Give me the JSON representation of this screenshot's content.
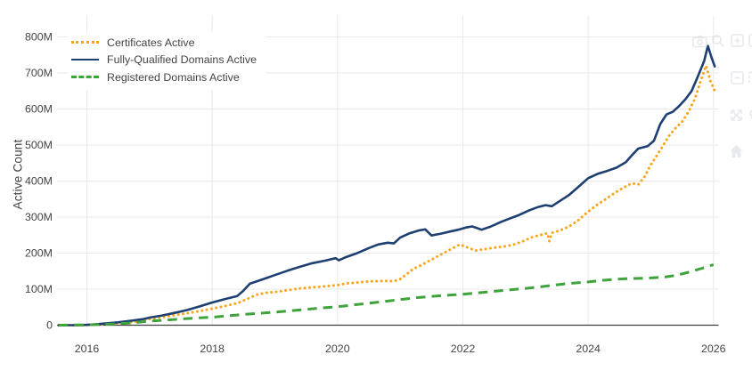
{
  "chart_data": {
    "type": "line",
    "title": "",
    "xlabel": "",
    "ylabel": "Active Count",
    "grid": true,
    "legend_position": "top-left-inside",
    "xlim": [
      2015.52,
      2026.1
    ],
    "ylim": [
      0,
      860
    ],
    "y_unit": "count (M = millions)",
    "x_ticks": [
      {
        "v": 2016,
        "label": "2016"
      },
      {
        "v": 2018,
        "label": "2018"
      },
      {
        "v": 2020,
        "label": "2020"
      },
      {
        "v": 2022,
        "label": "2022"
      },
      {
        "v": 2024,
        "label": "2024"
      },
      {
        "v": 2026,
        "label": "2026"
      }
    ],
    "y_ticks": [
      {
        "v": 0,
        "label": "0"
      },
      {
        "v": 100,
        "label": "100M"
      },
      {
        "v": 200,
        "label": "200M"
      },
      {
        "v": 300,
        "label": "300M"
      },
      {
        "v": 400,
        "label": "400M"
      },
      {
        "v": 500,
        "label": "500M"
      },
      {
        "v": 600,
        "label": "600M"
      },
      {
        "v": 700,
        "label": "700M"
      },
      {
        "v": 800,
        "label": "800M"
      }
    ],
    "colors": {
      "grid": "#e9e9e9",
      "zeroline": "#3d3d3d",
      "tick_text": "#444444",
      "modebar_icon": "#d3d8e0"
    },
    "series": [
      {
        "name": "Certificates Active",
        "color": "#f9a51b",
        "dash": "dot",
        "points_unit_millions": true,
        "points": [
          [
            2015.55,
            0
          ],
          [
            2015.9,
            0
          ],
          [
            2016.1,
            1
          ],
          [
            2016.3,
            3
          ],
          [
            2016.5,
            5
          ],
          [
            2016.7,
            8
          ],
          [
            2016.9,
            13
          ],
          [
            2017.0,
            17
          ],
          [
            2017.2,
            22
          ],
          [
            2017.4,
            28
          ],
          [
            2017.6,
            33
          ],
          [
            2017.8,
            39
          ],
          [
            2018.0,
            46
          ],
          [
            2018.2,
            53
          ],
          [
            2018.4,
            61
          ],
          [
            2018.55,
            72
          ],
          [
            2018.7,
            84
          ],
          [
            2018.85,
            90
          ],
          [
            2019.0,
            92
          ],
          [
            2019.2,
            97
          ],
          [
            2019.4,
            102
          ],
          [
            2019.6,
            105
          ],
          [
            2019.8,
            108
          ],
          [
            2020.0,
            111
          ],
          [
            2020.15,
            116
          ],
          [
            2020.3,
            118
          ],
          [
            2020.45,
            121
          ],
          [
            2020.6,
            122
          ],
          [
            2020.75,
            123
          ],
          [
            2020.9,
            122
          ],
          [
            2021.0,
            128
          ],
          [
            2021.1,
            141
          ],
          [
            2021.2,
            155
          ],
          [
            2021.35,
            168
          ],
          [
            2021.5,
            182
          ],
          [
            2021.65,
            196
          ],
          [
            2021.8,
            210
          ],
          [
            2021.95,
            224
          ],
          [
            2022.1,
            214
          ],
          [
            2022.2,
            207
          ],
          [
            2022.35,
            211
          ],
          [
            2022.5,
            215
          ],
          [
            2022.65,
            218
          ],
          [
            2022.8,
            223
          ],
          [
            2022.95,
            232
          ],
          [
            2023.1,
            244
          ],
          [
            2023.25,
            251
          ],
          [
            2023.35,
            255
          ],
          [
            2023.38,
            233
          ],
          [
            2023.42,
            256
          ],
          [
            2023.55,
            263
          ],
          [
            2023.7,
            274
          ],
          [
            2023.85,
            292
          ],
          [
            2024.0,
            315
          ],
          [
            2024.15,
            335
          ],
          [
            2024.3,
            352
          ],
          [
            2024.45,
            370
          ],
          [
            2024.6,
            385
          ],
          [
            2024.7,
            394
          ],
          [
            2024.8,
            390
          ],
          [
            2024.9,
            412
          ],
          [
            2025.0,
            446
          ],
          [
            2025.1,
            472
          ],
          [
            2025.2,
            500
          ],
          [
            2025.3,
            528
          ],
          [
            2025.4,
            548
          ],
          [
            2025.5,
            565
          ],
          [
            2025.6,
            592
          ],
          [
            2025.7,
            627
          ],
          [
            2025.8,
            680
          ],
          [
            2025.88,
            720
          ],
          [
            2025.95,
            678
          ],
          [
            2026.02,
            650
          ]
        ]
      },
      {
        "name": "Fully-Qualified Domains Active",
        "color": "#1e3f72",
        "dash": "solid",
        "points_unit_millions": true,
        "points": [
          [
            2015.55,
            0
          ],
          [
            2015.9,
            0
          ],
          [
            2016.1,
            2
          ],
          [
            2016.3,
            5
          ],
          [
            2016.5,
            8
          ],
          [
            2016.7,
            12
          ],
          [
            2016.9,
            17
          ],
          [
            2017.0,
            21
          ],
          [
            2017.2,
            27
          ],
          [
            2017.4,
            34
          ],
          [
            2017.6,
            42
          ],
          [
            2017.8,
            52
          ],
          [
            2018.0,
            63
          ],
          [
            2018.2,
            72
          ],
          [
            2018.4,
            81
          ],
          [
            2018.5,
            96
          ],
          [
            2018.6,
            115
          ],
          [
            2018.8,
            127
          ],
          [
            2019.0,
            139
          ],
          [
            2019.2,
            151
          ],
          [
            2019.4,
            162
          ],
          [
            2019.6,
            172
          ],
          [
            2019.8,
            179
          ],
          [
            2019.97,
            186
          ],
          [
            2020.02,
            180
          ],
          [
            2020.12,
            188
          ],
          [
            2020.3,
            199
          ],
          [
            2020.5,
            214
          ],
          [
            2020.65,
            224
          ],
          [
            2020.8,
            229
          ],
          [
            2020.9,
            227
          ],
          [
            2021.0,
            243
          ],
          [
            2021.15,
            255
          ],
          [
            2021.3,
            263
          ],
          [
            2021.4,
            266
          ],
          [
            2021.5,
            249
          ],
          [
            2021.65,
            254
          ],
          [
            2021.8,
            260
          ],
          [
            2021.95,
            266
          ],
          [
            2022.05,
            271
          ],
          [
            2022.15,
            274
          ],
          [
            2022.3,
            265
          ],
          [
            2022.45,
            274
          ],
          [
            2022.6,
            286
          ],
          [
            2022.75,
            296
          ],
          [
            2022.9,
            306
          ],
          [
            2023.05,
            318
          ],
          [
            2023.2,
            328
          ],
          [
            2023.32,
            333
          ],
          [
            2023.42,
            330
          ],
          [
            2023.55,
            345
          ],
          [
            2023.7,
            362
          ],
          [
            2023.85,
            385
          ],
          [
            2024.0,
            408
          ],
          [
            2024.15,
            420
          ],
          [
            2024.3,
            428
          ],
          [
            2024.45,
            437
          ],
          [
            2024.6,
            452
          ],
          [
            2024.7,
            472
          ],
          [
            2024.8,
            490
          ],
          [
            2024.95,
            497
          ],
          [
            2025.05,
            512
          ],
          [
            2025.15,
            558
          ],
          [
            2025.25,
            585
          ],
          [
            2025.35,
            592
          ],
          [
            2025.45,
            608
          ],
          [
            2025.55,
            627
          ],
          [
            2025.65,
            650
          ],
          [
            2025.75,
            690
          ],
          [
            2025.85,
            733
          ],
          [
            2025.91,
            775
          ],
          [
            2025.97,
            742
          ],
          [
            2026.02,
            718
          ]
        ]
      },
      {
        "name": "Registered Domains Active",
        "color": "#3fa33c",
        "dash": "dash",
        "points_unit_millions": true,
        "points": [
          [
            2015.55,
            0
          ],
          [
            2016.0,
            1
          ],
          [
            2016.25,
            2
          ],
          [
            2016.5,
            4
          ],
          [
            2016.75,
            7
          ],
          [
            2017.0,
            11
          ],
          [
            2017.25,
            14
          ],
          [
            2017.5,
            17
          ],
          [
            2017.75,
            20
          ],
          [
            2018.0,
            22
          ],
          [
            2018.25,
            26
          ],
          [
            2018.5,
            30
          ],
          [
            2018.75,
            33
          ],
          [
            2019.0,
            36
          ],
          [
            2019.25,
            40
          ],
          [
            2019.5,
            44
          ],
          [
            2019.75,
            48
          ],
          [
            2020.0,
            51
          ],
          [
            2020.25,
            56
          ],
          [
            2020.5,
            61
          ],
          [
            2020.75,
            66
          ],
          [
            2021.0,
            71
          ],
          [
            2021.25,
            76
          ],
          [
            2021.5,
            80
          ],
          [
            2021.75,
            83
          ],
          [
            2022.0,
            86
          ],
          [
            2022.25,
            90
          ],
          [
            2022.5,
            94
          ],
          [
            2022.75,
            98
          ],
          [
            2023.0,
            102
          ],
          [
            2023.25,
            107
          ],
          [
            2023.45,
            111
          ],
          [
            2023.65,
            115
          ],
          [
            2023.85,
            118
          ],
          [
            2024.0,
            120
          ],
          [
            2024.2,
            124
          ],
          [
            2024.4,
            127
          ],
          [
            2024.6,
            129
          ],
          [
            2024.8,
            130
          ],
          [
            2025.0,
            131
          ],
          [
            2025.2,
            133
          ],
          [
            2025.4,
            138
          ],
          [
            2025.6,
            147
          ],
          [
            2025.8,
            157
          ],
          [
            2026.0,
            168
          ]
        ]
      }
    ]
  },
  "modebar": {
    "icons": [
      {
        "name": "camera-icon"
      },
      {
        "name": "zoom-icon"
      },
      {
        "name": "zoom-in-icon"
      },
      {
        "name": "pan-icon"
      },
      {
        "name": "zoom-out-icon"
      },
      {
        "name": "box-select-icon"
      },
      {
        "name": "autoscale-icon"
      },
      {
        "name": "lasso-icon"
      },
      {
        "name": "reset-axes-home-icon"
      }
    ]
  }
}
